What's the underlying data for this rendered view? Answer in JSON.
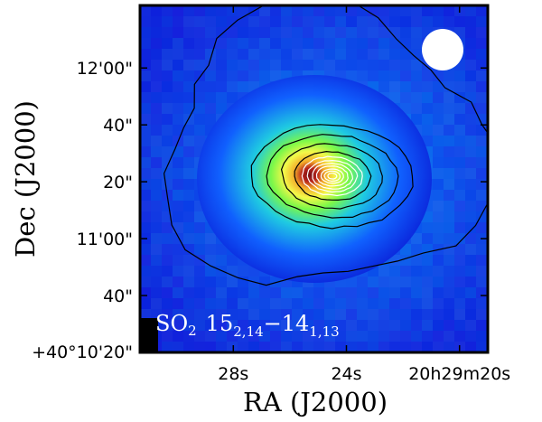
{
  "chart_data": {
    "type": "heatmap",
    "title": "",
    "xlabel": "RA (J2000)",
    "ylabel": "Dec (J2000)",
    "x_ticks": [
      {
        "label": "28s",
        "ra_sec": 28
      },
      {
        "label": "24s",
        "ra_sec": 24
      },
      {
        "label": "20h29m20s",
        "ra_sec": 20
      }
    ],
    "y_ticks": [
      {
        "label": "12'00\"",
        "dec_arcsec": 100
      },
      {
        "label": "40\"",
        "dec_arcsec": 80
      },
      {
        "label": "20\"",
        "dec_arcsec": 60
      },
      {
        "label": "11'00\"",
        "dec_arcsec": 40
      },
      {
        "label": "40\"",
        "dec_arcsec": 20
      },
      {
        "label": "+40°10'20\"",
        "dec_arcsec": 0
      }
    ],
    "xlim": [
      31.3,
      19.0
    ],
    "ylim": [
      0,
      122
    ],
    "annotation": {
      "molecule": "SO",
      "molecule_sub": "2",
      "transition_upper": "15",
      "transition_upper_sub": "2,14",
      "transition_lower": "14",
      "transition_lower_sub": "1,13"
    },
    "beam": {
      "position": "top-right",
      "color": "#ffffff"
    },
    "peak": {
      "ra_sec": 24.5,
      "dec_arcsec": 62
    },
    "colormap": [
      "#0a1fd8",
      "#1060ff",
      "#20d0e0",
      "#80ff40",
      "#ffff40",
      "#ffb020",
      "#c02010",
      "#7a0a0a"
    ],
    "contour_color_outer": "#000000",
    "contour_color_inner": "#ffffff",
    "grid": false
  }
}
